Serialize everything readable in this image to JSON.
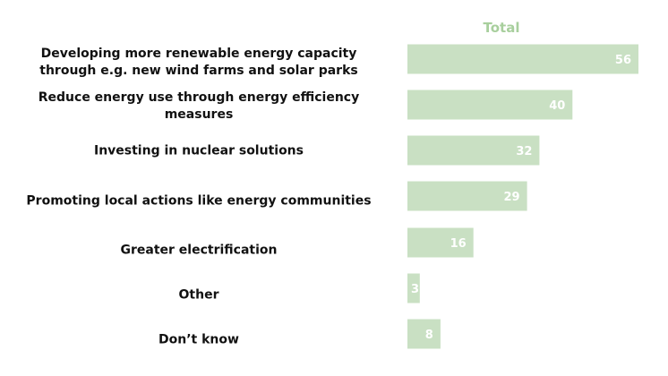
{
  "chart_data": {
    "type": "bar",
    "orientation": "horizontal",
    "series": [
      {
        "name": "Total",
        "values": [
          56,
          40,
          32,
          29,
          16,
          3,
          8
        ]
      }
    ],
    "categories": [
      "Developing more renewable energy capacity through e.g. new wind farms and solar parks",
      "Reduce energy use through energy efficiency measures",
      "Investing in nuclear solutions",
      "Promoting local actions like energy communities",
      "Greater electrification",
      "Other",
      "Don’t know"
    ],
    "xlim": [
      0,
      56
    ],
    "data_labels": true,
    "grid": false,
    "bar_color": "#c9e0c3",
    "title_color": "#a8cf9d",
    "label_color": "#ffffff"
  }
}
